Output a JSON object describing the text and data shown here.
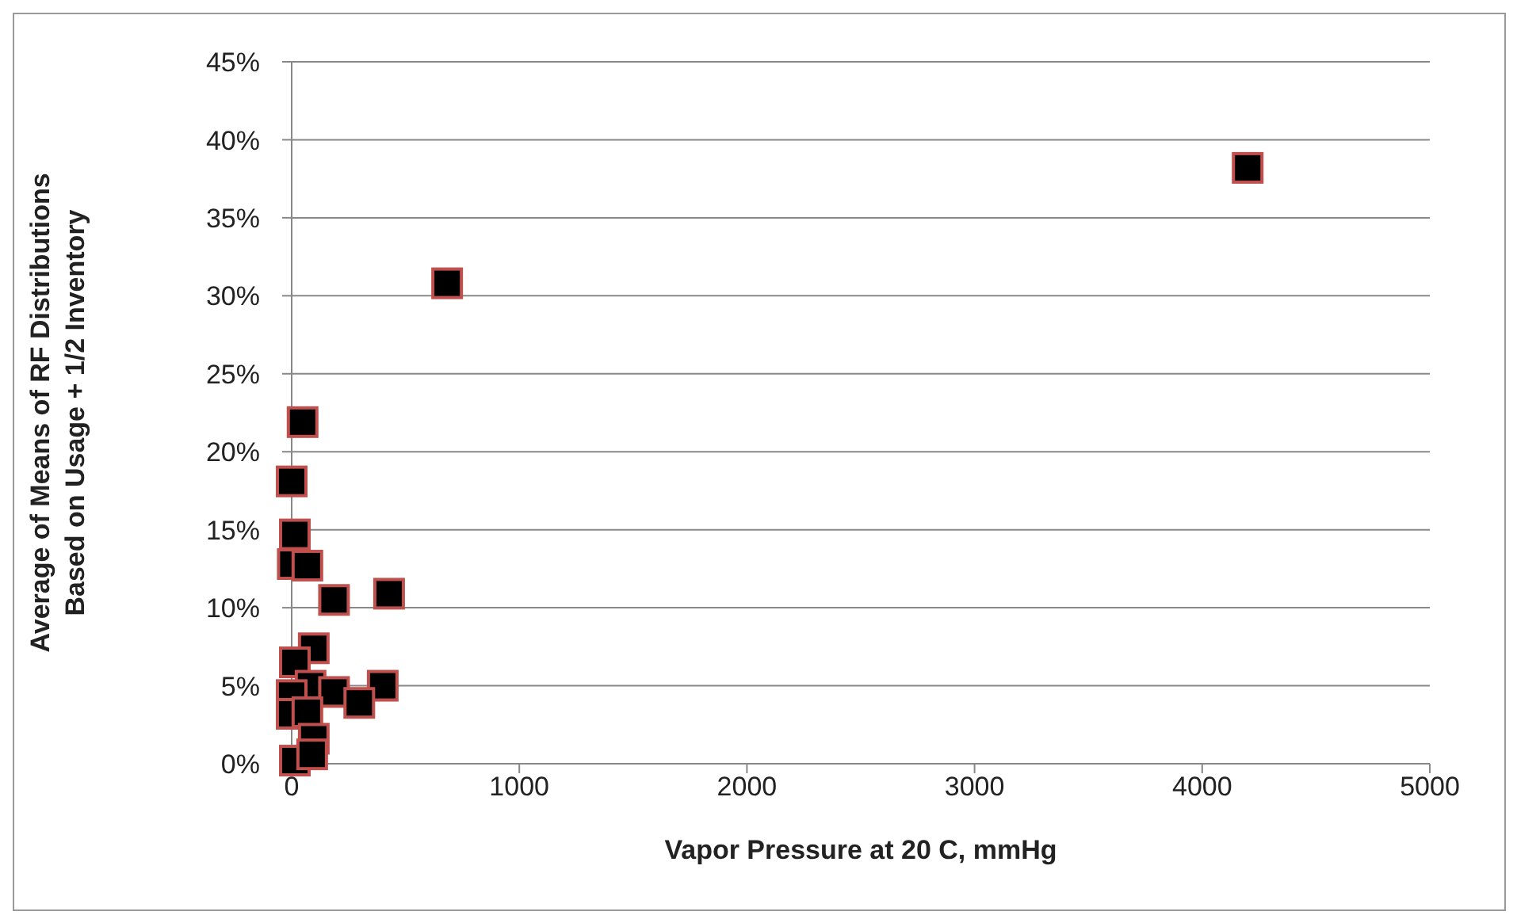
{
  "chart_data": {
    "type": "scatter",
    "xlabel": "Vapor Pressure at 20 C, mmHg",
    "ylabel": "Average of Means of RF Distributions\nBased on Usage + 1/2 Inventory",
    "x": [
      683,
      4200,
      48,
      0,
      14,
      5,
      69,
      186,
      428,
      97,
      14,
      83,
      186,
      400,
      297,
      0,
      0,
      69,
      97,
      14,
      90
    ],
    "series": [
      {
        "color": "#000000",
        "values": [
          30.8,
          38.2,
          21.9,
          18.1,
          14.7,
          12.8,
          12.7,
          10.5,
          10.9,
          7.4,
          6.5,
          5.0,
          4.6,
          5.0,
          3.9,
          4.4,
          3.2,
          3.3,
          1.6,
          0.2,
          0.6
        ]
      }
    ],
    "xlim": [
      0,
      5000
    ],
    "xticks": [
      0,
      1000,
      2000,
      3000,
      4000,
      5000
    ],
    "ylim": [
      0,
      45
    ],
    "yticks": [
      {
        "value": 0,
        "label": "0%"
      },
      {
        "value": 5,
        "label": "5%"
      },
      {
        "value": 10,
        "label": "10%"
      },
      {
        "value": 15,
        "label": "15%"
      },
      {
        "value": 20,
        "label": "20%"
      },
      {
        "value": 25,
        "label": "25%"
      },
      {
        "value": 30,
        "label": "30%"
      },
      {
        "value": 35,
        "label": "35%"
      },
      {
        "value": 40,
        "label": "40%"
      },
      {
        "value": 45,
        "label": "45%"
      }
    ],
    "grid": "y",
    "marker": "square"
  }
}
